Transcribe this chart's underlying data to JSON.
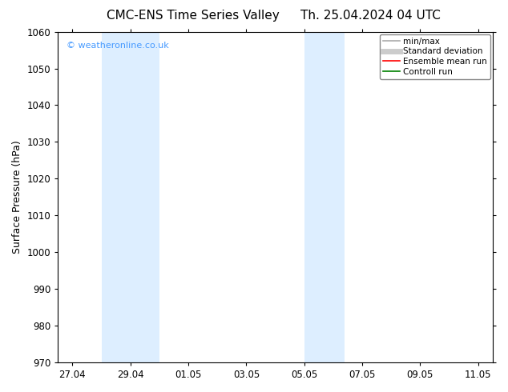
{
  "title_left": "CMC-ENS Time Series Valley",
  "title_right": "Th. 25.04.2024 04 UTC",
  "ylabel": "Surface Pressure (hPa)",
  "ylim": [
    970,
    1060
  ],
  "yticks": [
    970,
    980,
    990,
    1000,
    1010,
    1020,
    1030,
    1040,
    1050,
    1060
  ],
  "xtick_labels": [
    "27.04",
    "29.04",
    "01.05",
    "03.05",
    "05.05",
    "07.05",
    "09.05",
    "11.05"
  ],
  "xtick_positions": [
    0,
    2,
    4,
    6,
    8,
    10,
    12,
    14
  ],
  "xlim": [
    -0.5,
    14.5
  ],
  "shaded_bands": [
    {
      "x_start": 1.0,
      "x_end": 3.0
    },
    {
      "x_start": 8.0,
      "x_end": 9.4
    }
  ],
  "shade_color": "#ddeeff",
  "background_color": "#ffffff",
  "watermark_text": "© weatheronline.co.uk",
  "watermark_color": "#4499ff",
  "legend_items": [
    {
      "label": "min/max",
      "color": "#aaaaaa",
      "lw": 1.2
    },
    {
      "label": "Standard deviation",
      "color": "#cccccc",
      "lw": 5
    },
    {
      "label": "Ensemble mean run",
      "color": "#ff0000",
      "lw": 1.2
    },
    {
      "label": "Controll run",
      "color": "#008000",
      "lw": 1.2
    }
  ],
  "title_fontsize": 11,
  "tick_fontsize": 8.5,
  "ylabel_fontsize": 9,
  "legend_fontsize": 7.5,
  "watermark_fontsize": 8
}
